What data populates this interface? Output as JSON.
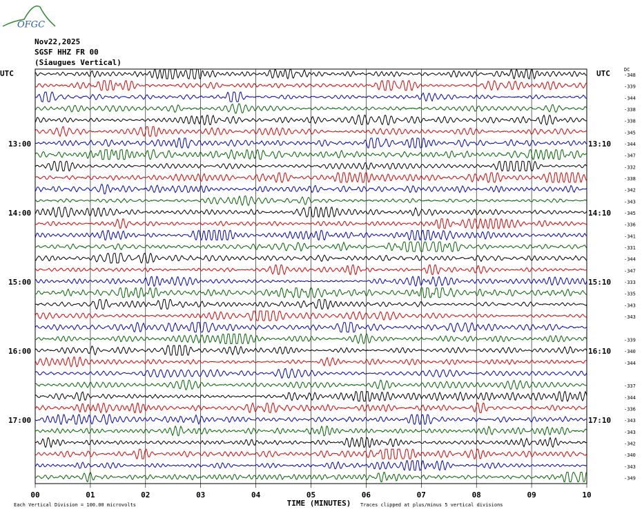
{
  "header": {
    "logo": "OFGC",
    "date": "Nov22,2025",
    "station": "SGSF HHZ FR 00",
    "location": "(Siaugues Vertical)"
  },
  "left_label": "UTC",
  "right_label": "UTC",
  "dc_label": "DC",
  "rows": [
    {
      "color": "#000000",
      "left": null,
      "right": null,
      "dc": "-348"
    },
    {
      "color": "#e00000",
      "left": null,
      "right": null,
      "dc": "-339"
    },
    {
      "color": "#0000c8",
      "left": null,
      "right": null,
      "dc": "-344"
    },
    {
      "color": "#006400",
      "left": null,
      "right": null,
      "dc": "-338"
    },
    {
      "color": "#000000",
      "left": null,
      "right": null,
      "dc": "-338"
    },
    {
      "color": "#e00000",
      "left": null,
      "right": null,
      "dc": "-345"
    },
    {
      "color": "#0000c8",
      "left": "13:00",
      "right": "13:10",
      "dc": "-344"
    },
    {
      "color": "#006400",
      "left": null,
      "right": null,
      "dc": "-347"
    },
    {
      "color": "#000000",
      "left": null,
      "right": null,
      "dc": "-332"
    },
    {
      "color": "#e00000",
      "left": null,
      "right": null,
      "dc": "-338"
    },
    {
      "color": "#0000c8",
      "left": null,
      "right": null,
      "dc": "-342"
    },
    {
      "color": "#006400",
      "left": null,
      "right": null,
      "dc": "-343"
    },
    {
      "color": "#000000",
      "left": "14:00",
      "right": "14:10",
      "dc": "-345"
    },
    {
      "color": "#e00000",
      "left": null,
      "right": null,
      "dc": "-336"
    },
    {
      "color": "#0000c8",
      "left": null,
      "right": null,
      "dc": "-341"
    },
    {
      "color": "#006400",
      "left": null,
      "right": null,
      "dc": "-331"
    },
    {
      "color": "#000000",
      "left": null,
      "right": null,
      "dc": "-344"
    },
    {
      "color": "#e00000",
      "left": null,
      "right": null,
      "dc": "-347"
    },
    {
      "color": "#0000c8",
      "left": "15:00",
      "right": "15:10",
      "dc": "-333"
    },
    {
      "color": "#006400",
      "left": null,
      "right": null,
      "dc": "-335"
    },
    {
      "color": "#000000",
      "left": null,
      "right": null,
      "dc": "-343"
    },
    {
      "color": "#e00000",
      "left": null,
      "right": null,
      "dc": "-343"
    },
    {
      "color": "#0000c8",
      "left": null,
      "right": null,
      "dc": null
    },
    {
      "color": "#006400",
      "left": null,
      "right": null,
      "dc": "-339"
    },
    {
      "color": "#000000",
      "left": "16:00",
      "right": "16:10",
      "dc": "-340"
    },
    {
      "color": "#e00000",
      "left": null,
      "right": null,
      "dc": "-344"
    },
    {
      "color": "#0000c8",
      "left": null,
      "right": null,
      "dc": null
    },
    {
      "color": "#006400",
      "left": null,
      "right": null,
      "dc": "-337"
    },
    {
      "color": "#000000",
      "left": null,
      "right": null,
      "dc": "-344"
    },
    {
      "color": "#e00000",
      "left": null,
      "right": null,
      "dc": "-336"
    },
    {
      "color": "#0000c8",
      "left": "17:00",
      "right": "17:10",
      "dc": "-343"
    },
    {
      "color": "#006400",
      "left": null,
      "right": null,
      "dc": "-343"
    },
    {
      "color": "#000000",
      "left": null,
      "right": null,
      "dc": "-342"
    },
    {
      "color": "#e00000",
      "left": null,
      "right": null,
      "dc": "-340"
    },
    {
      "color": "#0000c8",
      "left": null,
      "right": null,
      "dc": "-343"
    },
    {
      "color": "#006400",
      "left": null,
      "right": null,
      "dc": "-349"
    }
  ],
  "x_ticks": [
    "00",
    "01",
    "02",
    "03",
    "04",
    "05",
    "06",
    "07",
    "08",
    "09",
    "10"
  ],
  "x_label": "TIME (MINUTES)",
  "scale_note": "Each Vertical Division =  100.00 microvolts",
  "clip_note": "Traces clipped at plus/minus 5 vertical divisions"
}
